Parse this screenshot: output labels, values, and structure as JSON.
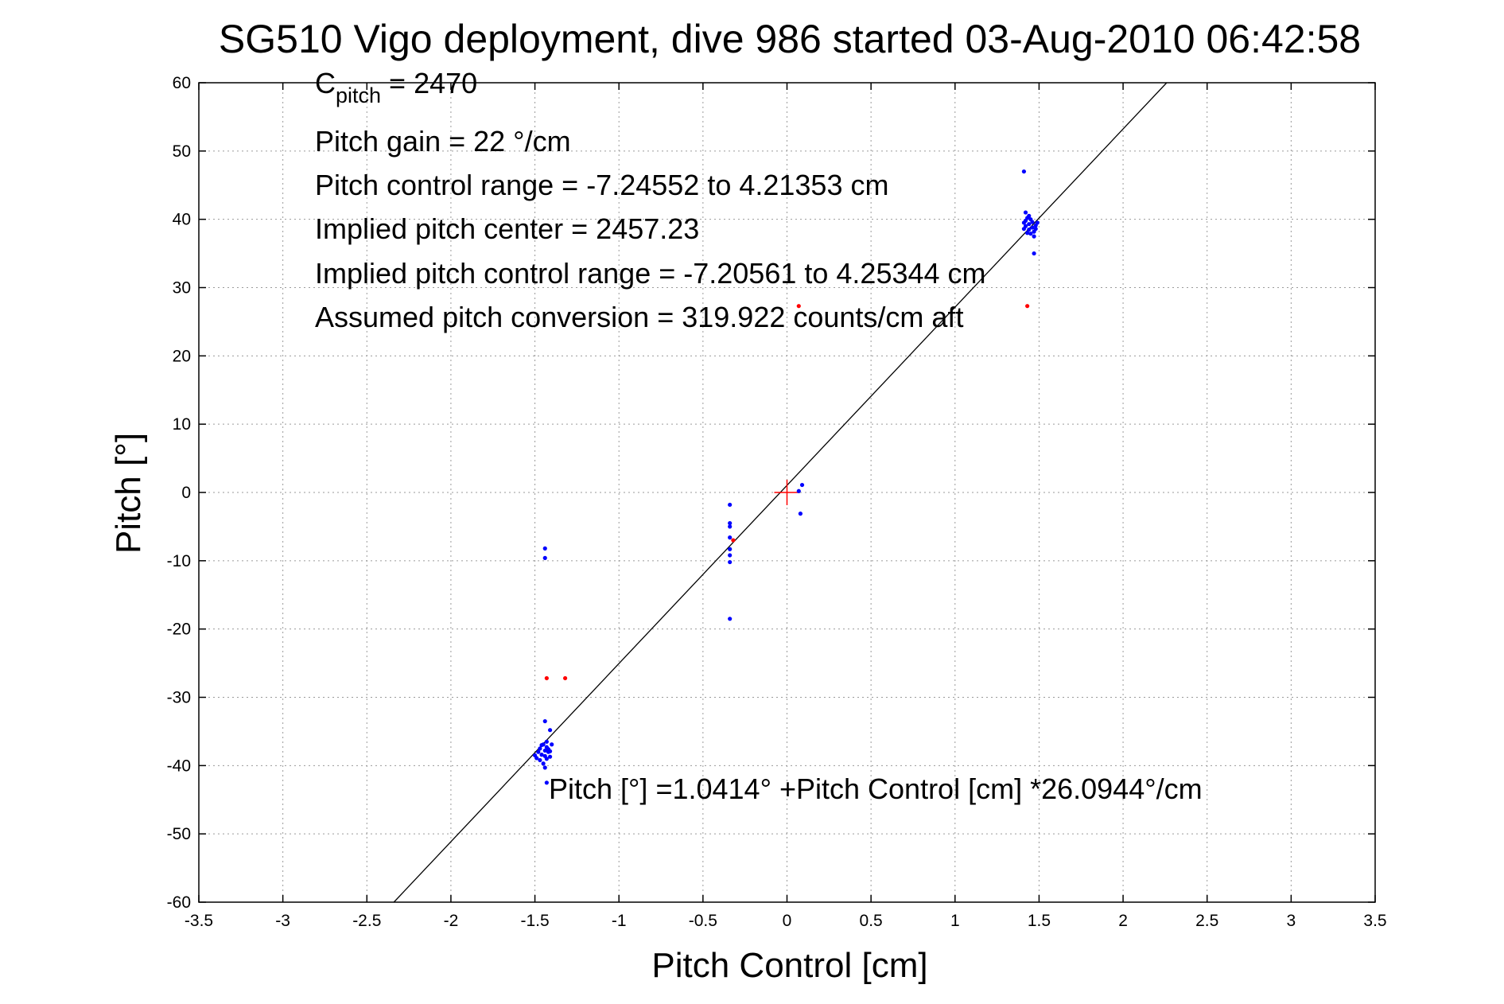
{
  "chart_data": {
    "type": "scatter",
    "title": "SG510 Vigo deployment, dive 986 started 03-Aug-2010 06:42:58",
    "xlabel": "Pitch Control [cm]",
    "ylabel": "Pitch [°]",
    "xlim": [
      -3.5,
      3.5
    ],
    "ylim": [
      -60,
      60
    ],
    "xticks": [
      -3.5,
      -3,
      -2.5,
      -2,
      -1.5,
      -1,
      -0.5,
      0,
      0.5,
      1,
      1.5,
      2,
      2.5,
      3,
      3.5
    ],
    "yticks": [
      -60,
      -50,
      -40,
      -30,
      -20,
      -10,
      0,
      10,
      20,
      30,
      40,
      50,
      60
    ],
    "xtick_labels": [
      "-3.5",
      "-3",
      "-2.5",
      "-2",
      "-1.5",
      "-1",
      "-0.5",
      "0",
      "0.5",
      "1",
      "1.5",
      "2",
      "2.5",
      "3",
      "3.5"
    ],
    "ytick_labels": [
      "-60",
      "-50",
      "-40",
      "-30",
      "-20",
      "-10",
      "0",
      "10",
      "20",
      "30",
      "40",
      "50",
      "60"
    ],
    "grid": true,
    "annotations": {
      "c_pitch_main": "C",
      "c_pitch_sub": "pitch",
      "c_pitch_value": " = 2470",
      "pitch_gain": "Pitch gain = 22 °/cm",
      "control_range": "Pitch control range = -7.24552 to 4.21353 cm",
      "implied_center": "Implied pitch center = 2457.23",
      "implied_range": "Implied pitch control range = -7.20561 to 4.25344 cm",
      "assumed_conversion": "Assumed pitch conversion = 319.922 counts/cm aft",
      "fit_equation": "Pitch [°] =1.0414° +Pitch Control [cm] *26.0944°/cm"
    },
    "fit_line": {
      "intercept": 1.0414,
      "slope": 26.0944,
      "color": "#000000"
    },
    "center_marker": {
      "x": 0,
      "y": 0,
      "color": "#ff0000"
    },
    "series": [
      {
        "color": "#0000ff",
        "points": [
          [
            -1.5,
            -38.5
          ],
          [
            -1.49,
            -38.9
          ],
          [
            -1.48,
            -38.0
          ],
          [
            -1.47,
            -37.5
          ],
          [
            -1.47,
            -39.2
          ],
          [
            -1.46,
            -37.0
          ],
          [
            -1.46,
            -38.4
          ],
          [
            -1.45,
            -39.7
          ],
          [
            -1.45,
            -36.9
          ],
          [
            -1.44,
            -37.8
          ],
          [
            -1.44,
            -38.6
          ],
          [
            -1.44,
            -40.3
          ],
          [
            -1.43,
            -37.3
          ],
          [
            -1.43,
            -36.5
          ],
          [
            -1.43,
            -39.0
          ],
          [
            -1.42,
            -38.0
          ],
          [
            -1.42,
            -37.6
          ],
          [
            -1.41,
            -37.9
          ],
          [
            -1.41,
            -38.7
          ],
          [
            -1.4,
            -36.9
          ],
          [
            -1.44,
            -33.5
          ],
          [
            -1.41,
            -34.8
          ],
          [
            -1.43,
            -42.5
          ],
          [
            -1.44,
            -8.2
          ],
          [
            -1.44,
            -9.6
          ],
          [
            -0.34,
            -1.8
          ],
          [
            -0.34,
            -4.5
          ],
          [
            -0.34,
            -5.0
          ],
          [
            -0.34,
            -6.6
          ],
          [
            -0.34,
            -8.3
          ],
          [
            -0.34,
            -9.2
          ],
          [
            -0.34,
            -10.2
          ],
          [
            -0.34,
            -18.5
          ],
          [
            0.07,
            0.2
          ],
          [
            0.09,
            1.1
          ],
          [
            0.08,
            -3.1
          ],
          [
            1.41,
            47.0
          ],
          [
            1.41,
            39.5
          ],
          [
            1.41,
            38.6
          ],
          [
            1.42,
            41.0
          ],
          [
            1.42,
            39.0
          ],
          [
            1.43,
            38.0
          ],
          [
            1.43,
            40.2
          ],
          [
            1.44,
            39.3
          ],
          [
            1.44,
            38.5
          ],
          [
            1.45,
            37.9
          ],
          [
            1.45,
            40.0
          ],
          [
            1.46,
            38.8
          ],
          [
            1.46,
            39.6
          ],
          [
            1.47,
            38.2
          ],
          [
            1.47,
            37.5
          ],
          [
            1.48,
            39.1
          ],
          [
            1.48,
            38.6
          ],
          [
            1.49,
            39.5
          ],
          [
            1.42,
            39.8
          ],
          [
            1.44,
            40.5
          ],
          [
            1.47,
            35.0
          ]
        ]
      },
      {
        "color": "#ff0000",
        "points": [
          [
            -1.43,
            -27.2
          ],
          [
            -1.32,
            -27.2
          ],
          [
            -0.32,
            -7.0
          ],
          [
            0.07,
            27.3
          ],
          [
            1.43,
            27.3
          ]
        ]
      }
    ]
  }
}
